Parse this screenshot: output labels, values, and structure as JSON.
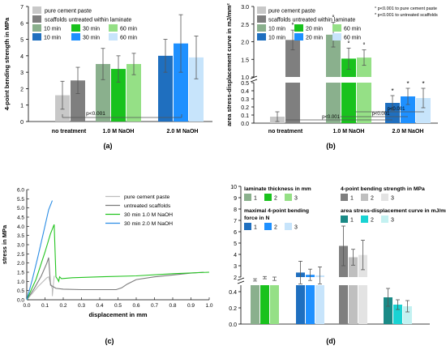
{
  "panel_labels": [
    "(a)",
    "(b)",
    "(c)",
    "(d)"
  ],
  "chart_data": [
    {
      "panel": "(a)",
      "type": "bar",
      "ylabel": "4-point bending strength in MPa",
      "ylim": [
        0,
        7
      ],
      "yticks": [
        0,
        1,
        2,
        3,
        4,
        5,
        6,
        7
      ],
      "groups": [
        "no treatment",
        "1.0 M NaOH",
        "2.0 M NaOH"
      ],
      "legend": [
        {
          "label": "pure cement paste",
          "color": "#c8c8c8"
        },
        {
          "label": "scaffolds untreated within laminate",
          "color": "#7f7f7f"
        },
        {
          "label": "10 min",
          "color": "#8ab08d"
        },
        {
          "label": "30 min",
          "color": "#19c21d"
        },
        {
          "label": "60 min",
          "color": "#95e086"
        },
        {
          "label": "10 min",
          "color": "#1f6fbf"
        },
        {
          "label": "30 min",
          "color": "#1e90ff"
        },
        {
          "label": "60 min",
          "color": "#c7e4fb"
        }
      ],
      "bars": [
        {
          "group": 0,
          "color": "#c8c8c8",
          "value": 1.6,
          "err": 0.85
        },
        {
          "group": 0,
          "color": "#7f7f7f",
          "value": 2.5,
          "err": 0.8
        },
        {
          "group": 1,
          "color": "#8ab08d",
          "value": 3.5,
          "err": 0.95
        },
        {
          "group": 1,
          "color": "#19c21d",
          "value": 3.2,
          "err": 0.8
        },
        {
          "group": 1,
          "color": "#95e086",
          "value": 3.5,
          "err": 0.65
        },
        {
          "group": 2,
          "color": "#1f6fbf",
          "value": 4.0,
          "err": 1.0
        },
        {
          "group": 2,
          "color": "#1e90ff",
          "value": 4.75,
          "err": 1.75
        },
        {
          "group": 2,
          "color": "#c7e4fb",
          "value": 3.9,
          "err": 1.3
        }
      ],
      "annotation": "p<0.001"
    },
    {
      "panel": "(b)",
      "type": "bar",
      "ylabel": "area stress-displacement curve in mJ/mm²",
      "broken_axis": true,
      "yticks_upper": [
        1.0,
        1.5,
        2.0,
        2.5,
        3.0
      ],
      "yticks_lower": [
        0.0,
        0.1,
        0.2,
        0.3,
        0.4,
        0.5
      ],
      "groups": [
        "no treatment",
        "1.0 M NaOH",
        "2.0 M NaOH"
      ],
      "legend": [
        {
          "label": "pure cement paste",
          "color": "#c8c8c8"
        },
        {
          "label": "scaffolds untreated within laminate",
          "color": "#7f7f7f"
        },
        {
          "label": "10 min",
          "color": "#8ab08d"
        },
        {
          "label": "20 min",
          "color": "#19c21d"
        },
        {
          "label": "60 min",
          "color": "#95e086"
        },
        {
          "label": "10 min",
          "color": "#1f6fbf"
        },
        {
          "label": "20 min",
          "color": "#1e90ff"
        },
        {
          "label": "60 min",
          "color": "#c7e4fb"
        }
      ],
      "notes": [
        "° p<0.001 to pure cement paste",
        "* p<0.001 to untreated scaffolds"
      ],
      "bars": [
        {
          "group": 0,
          "color": "#c8c8c8",
          "value": 0.08,
          "err": 0.06,
          "mark": ""
        },
        {
          "group": 0,
          "color": "#7f7f7f",
          "value": 2.05,
          "err": 0.28,
          "mark": "°"
        },
        {
          "group": 1,
          "color": "#8ab08d",
          "value": 2.2,
          "err": 0.35,
          "mark": "°"
        },
        {
          "group": 1,
          "color": "#19c21d",
          "value": 1.52,
          "err": 0.3,
          "mark": "°"
        },
        {
          "group": 1,
          "color": "#95e086",
          "value": 1.55,
          "err": 0.22,
          "mark": "°"
        },
        {
          "group": 2,
          "color": "#1f6fbf",
          "value": 0.25,
          "err": 0.09,
          "mark": "*"
        },
        {
          "group": 2,
          "color": "#1e90ff",
          "value": 0.33,
          "err": 0.1,
          "mark": "*"
        },
        {
          "group": 2,
          "color": "#c7e4fb",
          "value": 0.31,
          "err": 0.12,
          "mark": "*"
        }
      ],
      "annotations": [
        "p<0.001",
        "p<0.001",
        "p<0.001"
      ]
    },
    {
      "panel": "(c)",
      "type": "line",
      "xlabel": "displacement in mm",
      "ylabel": "stress in MPa",
      "xlim": [
        0,
        1.0
      ],
      "ylim": [
        0,
        6.0
      ],
      "xticks": [
        0.0,
        0.1,
        0.2,
        0.3,
        0.4,
        0.5,
        0.6,
        0.7,
        0.8,
        0.9,
        1.0
      ],
      "yticks": [
        0.0,
        0.5,
        1.0,
        1.5,
        2.0,
        2.5,
        3.0,
        3.5,
        4.0,
        4.5,
        5.0,
        5.5,
        6.0
      ],
      "series": [
        {
          "name": "pure cement paste",
          "color": "#bdbdbd",
          "x": [
            0.0,
            0.03,
            0.06,
            0.09,
            0.11,
            0.12,
            0.13,
            0.14,
            0.14,
            0.15
          ],
          "y": [
            0.0,
            0.35,
            0.7,
            1.0,
            1.2,
            1.25,
            0.9,
            0.6,
            0.2,
            1.3
          ]
        },
        {
          "name": "untreated scaffolds",
          "color": "#7a7a7a",
          "x": [
            0.0,
            0.04,
            0.08,
            0.11,
            0.12,
            0.13,
            0.16,
            0.2,
            0.3,
            0.4,
            0.49,
            0.52,
            0.55,
            0.6,
            0.7,
            0.8,
            0.9,
            0.97
          ],
          "y": [
            0.0,
            0.6,
            1.3,
            2.0,
            2.3,
            0.8,
            0.62,
            0.58,
            0.55,
            0.55,
            0.55,
            0.65,
            0.85,
            1.1,
            1.25,
            1.35,
            1.45,
            1.5
          ]
        },
        {
          "name": "30 min 1.0 M NaOH",
          "color": "#23c420",
          "x": [
            0.0,
            0.05,
            0.1,
            0.13,
            0.15,
            0.16,
            0.17,
            0.175,
            0.18,
            0.19,
            0.25,
            0.4,
            0.6,
            0.8,
            1.0
          ],
          "y": [
            0.0,
            1.1,
            2.6,
            3.6,
            4.1,
            1.25,
            1.1,
            1.0,
            1.25,
            1.15,
            1.2,
            1.25,
            1.3,
            1.42,
            1.5
          ]
        },
        {
          "name": "30 min 2.0 M NaOH",
          "color": "#2b8de5",
          "x": [
            0.0,
            0.03,
            0.06,
            0.09,
            0.12,
            0.14
          ],
          "y": [
            0.0,
            1.1,
            2.3,
            3.6,
            4.9,
            5.4
          ]
        }
      ]
    },
    {
      "panel": "(d)",
      "type": "bar",
      "broken_axis": true,
      "yticks_upper": [
        2,
        3,
        4,
        5,
        6,
        7,
        8,
        9,
        10
      ],
      "yticks_lower": [
        0.0,
        0.2,
        0.4
      ],
      "legend_titles": [
        "laminate thickness in mm",
        "4-point bending strength in MPa",
        "maximal 4-point bending force in N",
        "area stress-displacement curve in mJ/mm²"
      ],
      "legend_numbers": [
        "1",
        "2",
        "3"
      ],
      "legend_colors": [
        [
          "#8ab08d",
          "#19c21d",
          "#95e086"
        ],
        [
          "#7f7f7f",
          "#bfbfbf",
          "#e3e3e3"
        ],
        [
          "#1f6fbf",
          "#1e90ff",
          "#c7e4fb"
        ],
        [
          "#1a8a86",
          "#19d3d3",
          "#c3f1f1"
        ]
      ],
      "bars": [
        {
          "group": 0,
          "color": "#8ab08d",
          "value": 1.75,
          "err": 0.1,
          "scale": "upper"
        },
        {
          "group": 0,
          "color": "#19c21d",
          "value": 1.95,
          "err": 0.1,
          "scale": "upper"
        },
        {
          "group": 0,
          "color": "#95e086",
          "value": 1.85,
          "err": 0.15,
          "scale": "upper"
        },
        {
          "group": 1,
          "color": "#1f6fbf",
          "value": 2.4,
          "err": 1.0,
          "scale": "upper"
        },
        {
          "group": 1,
          "color": "#1e90ff",
          "value": 2.2,
          "err": 0.5,
          "scale": "upper"
        },
        {
          "group": 1,
          "color": "#c7e4fb",
          "value": 2.15,
          "err": 0.75,
          "scale": "upper"
        },
        {
          "group": 2,
          "color": "#7f7f7f",
          "value": 4.75,
          "err": 1.75,
          "scale": "upper"
        },
        {
          "group": 2,
          "color": "#bfbfbf",
          "value": 3.75,
          "err": 0.7,
          "scale": "upper"
        },
        {
          "group": 2,
          "color": "#e3e3e3",
          "value": 3.95,
          "err": 1.3,
          "scale": "upper"
        },
        {
          "group": 3,
          "color": "#1a8a86",
          "value": 0.33,
          "err": 0.11,
          "scale": "lower"
        },
        {
          "group": 3,
          "color": "#19d3d3",
          "value": 0.24,
          "err": 0.06,
          "scale": "lower"
        },
        {
          "group": 3,
          "color": "#c3f1f1",
          "value": 0.22,
          "err": 0.07,
          "scale": "lower"
        }
      ]
    }
  ]
}
